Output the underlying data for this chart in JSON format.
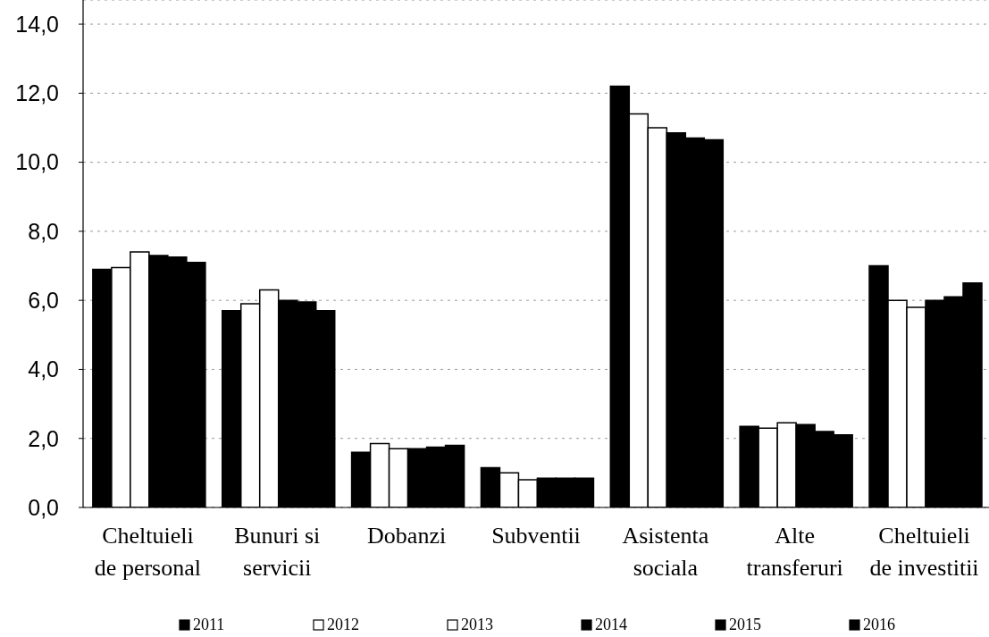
{
  "chart_data": {
    "type": "bar",
    "categories": [
      "Cheltuieli de personal",
      "Bunuri si servicii",
      "Dobanzi",
      "Subventii",
      "Asistenta sociala",
      "Alte transferuri",
      "Cheltuieli de investitii"
    ],
    "series": [
      {
        "name": "2011",
        "color": "#000000",
        "values": [
          6.9,
          5.7,
          1.6,
          1.15,
          12.2,
          2.35,
          7.0
        ]
      },
      {
        "name": "2012",
        "color": "#ffffff",
        "values": [
          6.95,
          5.9,
          1.85,
          1.0,
          11.4,
          2.3,
          6.0
        ]
      },
      {
        "name": "2013",
        "color": "#ffffff",
        "values": [
          7.4,
          6.3,
          1.7,
          0.8,
          11.0,
          2.45,
          5.8
        ]
      },
      {
        "name": "2014",
        "color": "#000000",
        "values": [
          7.3,
          6.0,
          1.7,
          0.85,
          10.85,
          2.4,
          6.0
        ]
      },
      {
        "name": "2015",
        "color": "#000000",
        "values": [
          7.25,
          5.95,
          1.75,
          0.85,
          10.7,
          2.2,
          6.1
        ]
      },
      {
        "name": "2016",
        "color": "#000000",
        "values": [
          7.1,
          5.7,
          1.8,
          0.85,
          10.65,
          2.1,
          6.5
        ]
      }
    ],
    "ylim": [
      0,
      14.7
    ],
    "yticks": [
      {
        "value": 0,
        "label": "0,0"
      },
      {
        "value": 2,
        "label": "2,0"
      },
      {
        "value": 4,
        "label": "4,0"
      },
      {
        "value": 6,
        "label": "6,0"
      },
      {
        "value": 8,
        "label": "8,0"
      },
      {
        "value": 10,
        "label": "10,0"
      },
      {
        "value": 12,
        "label": "12,0"
      },
      {
        "value": 14,
        "label": "14,0"
      }
    ],
    "grid": "y",
    "legend": "bottom"
  }
}
